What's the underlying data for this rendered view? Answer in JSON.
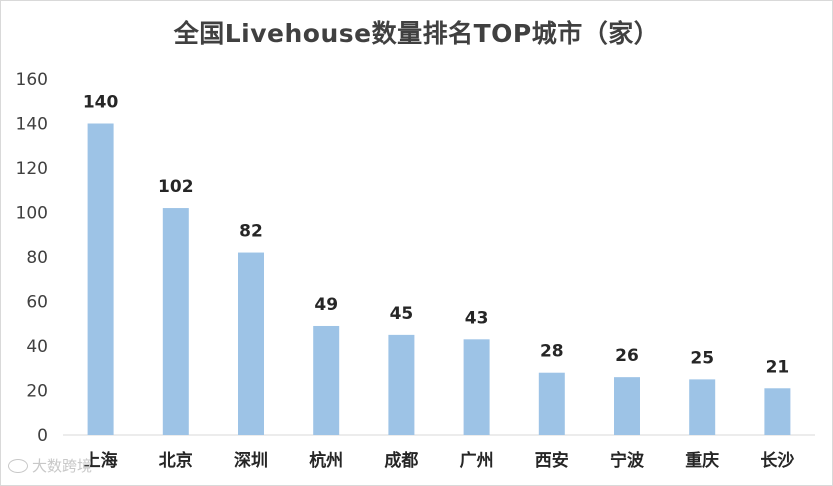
{
  "chart_data": {
    "type": "bar",
    "title": "全国Livehouse数量排名TOP城市（家）",
    "categories": [
      "上海",
      "北京",
      "深圳",
      "杭州",
      "成都",
      "广州",
      "西安",
      "宁波",
      "重庆",
      "长沙"
    ],
    "values": [
      140,
      102,
      82,
      49,
      45,
      43,
      28,
      26,
      25,
      21
    ],
    "ylim": [
      0,
      160
    ],
    "yticks": [
      0,
      20,
      40,
      60,
      80,
      100,
      120,
      140,
      160
    ],
    "xlabel": "",
    "ylabel": "",
    "grid": false,
    "bar_color": "#9dc3e6",
    "data_labels": true
  },
  "watermark": {
    "text": "大数跨境",
    "icon": "logo-mark-icon"
  }
}
